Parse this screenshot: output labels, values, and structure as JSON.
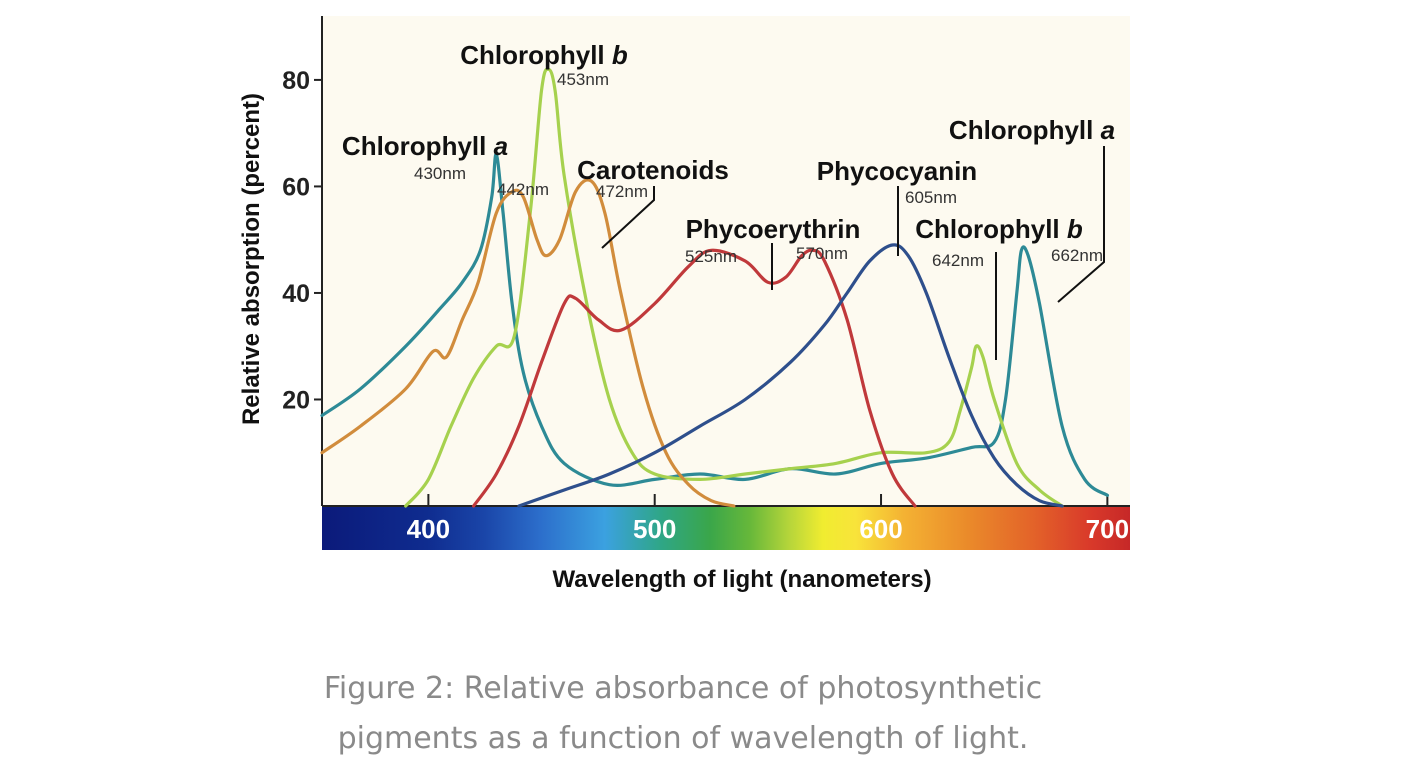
{
  "chart_data": {
    "type": "line",
    "xlabel": "Wavelength of light (nanometers)",
    "ylabel": "Relative absorption (percent)",
    "xlim": [
      353,
      710
    ],
    "ylim": [
      0,
      92
    ],
    "xticks": [
      400,
      500,
      600,
      700
    ],
    "yticks": [
      20,
      40,
      60,
      80
    ],
    "grid": false,
    "legend": "none",
    "spectrum_bar": true,
    "series": [
      {
        "name": "Chlorophyll a",
        "color": "#2d8a96",
        "x": [
          353,
          370,
          390,
          405,
          415,
          423,
          428,
          430,
          433,
          437,
          442,
          450,
          460,
          480,
          500,
          520,
          540,
          560,
          580,
          600,
          620,
          640,
          650,
          655,
          660,
          662,
          665,
          670,
          680,
          690,
          700
        ],
        "y": [
          17,
          22,
          30,
          37,
          42,
          48,
          58,
          66,
          55,
          38,
          25,
          15,
          8,
          4,
          5,
          6,
          5,
          7,
          6,
          8,
          9,
          11,
          12,
          20,
          40,
          48,
          47,
          38,
          15,
          5,
          2
        ]
      },
      {
        "name": "Chlorophyll b",
        "color": "#a6d14e",
        "x": [
          390,
          400,
          410,
          420,
          430,
          438,
          445,
          450,
          453,
          456,
          460,
          470,
          480,
          490,
          500,
          520,
          540,
          560,
          580,
          600,
          620,
          630,
          635,
          640,
          642,
          645,
          650,
          660,
          670,
          680
        ],
        "y": [
          0,
          5,
          15,
          24,
          30,
          32,
          55,
          78,
          82,
          78,
          62,
          38,
          20,
          10,
          6,
          5,
          6,
          7,
          8,
          10,
          10,
          12,
          18,
          26,
          30,
          28,
          20,
          8,
          3,
          0
        ]
      },
      {
        "name": "Carotenoids",
        "color": "#d18c3c",
        "x": [
          353,
          370,
          390,
          402,
          408,
          415,
          422,
          430,
          437,
          442,
          448,
          452,
          458,
          465,
          472,
          478,
          485,
          495,
          505,
          515,
          525,
          535
        ],
        "y": [
          10,
          15,
          22,
          29,
          28,
          35,
          42,
          55,
          59,
          58,
          50,
          47,
          50,
          59,
          61,
          55,
          40,
          22,
          10,
          4,
          1,
          0
        ]
      },
      {
        "name": "Phycoerythrin",
        "color": "#c0393b",
        "x": [
          420,
          430,
          440,
          450,
          460,
          465,
          475,
          485,
          500,
          515,
          525,
          540,
          550,
          558,
          565,
          570,
          575,
          585,
          595,
          605,
          615
        ],
        "y": [
          0,
          6,
          15,
          27,
          38,
          39,
          35,
          33,
          38,
          45,
          48,
          46,
          42,
          43,
          47,
          48,
          46,
          35,
          18,
          6,
          0
        ]
      },
      {
        "name": "Phycocyanin",
        "color": "#2e4f8c",
        "x": [
          440,
          460,
          480,
          500,
          520,
          540,
          560,
          575,
          585,
          595,
          605,
          612,
          620,
          630,
          640,
          650,
          660,
          670,
          680
        ],
        "y": [
          0,
          3,
          6,
          10,
          15,
          20,
          27,
          34,
          40,
          46,
          49,
          47,
          40,
          28,
          17,
          9,
          4,
          1,
          0
        ]
      }
    ],
    "annotations": [
      {
        "text": "Chlorophyll b",
        "x": 453
      },
      {
        "text": "453nm",
        "x": 453
      },
      {
        "text": "Chlorophyll a",
        "x": 430
      },
      {
        "text": "430nm",
        "x": 430
      },
      {
        "text": "442nm",
        "x": 442
      },
      {
        "text": "Carotenoids",
        "x": 472
      },
      {
        "text": "472nm",
        "x": 472
      },
      {
        "text": "Phycoerythrin",
        "x": 548
      },
      {
        "text": "525nm",
        "x": 525
      },
      {
        "text": "570nm",
        "x": 570
      },
      {
        "text": "Phycocyanin",
        "x": 605
      },
      {
        "text": "605nm",
        "x": 605
      },
      {
        "text": "Chlorophyll a",
        "x": 662
      },
      {
        "text": "Chlorophyll b",
        "x": 642
      },
      {
        "text": "642nm",
        "x": 642
      },
      {
        "text": "662nm",
        "x": 662
      }
    ]
  },
  "caption": {
    "line1": "Figure 2: Relative absorbance of photosynthetic",
    "line2": "pigments as a function of wavelength of light."
  }
}
